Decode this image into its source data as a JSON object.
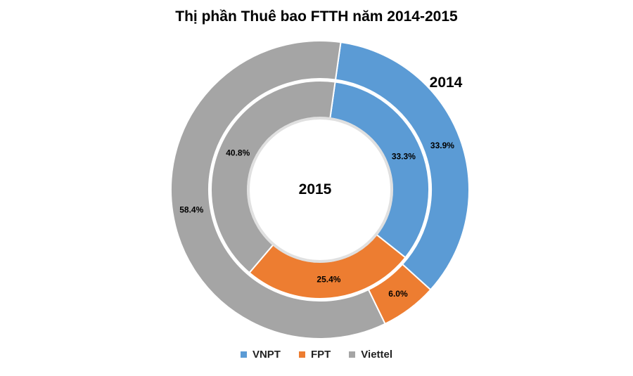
{
  "chart_data": {
    "type": "doughnut",
    "title": "Thị phần Thuê bao FTTH năm 2014-2015",
    "categories": [
      "VNPT",
      "FPT",
      "Viettel"
    ],
    "colors": [
      "#5B9BD5",
      "#ED7D31",
      "#A5A5A5"
    ],
    "series": [
      {
        "name": "2014",
        "ring": "outer",
        "values": [
          33.9,
          6.0,
          58.4
        ],
        "labels": [
          "33.9%",
          "6.0%",
          "58.4%"
        ]
      },
      {
        "name": "2015",
        "ring": "inner",
        "values": [
          33.3,
          25.4,
          40.8
        ],
        "labels": [
          "33.3%",
          "25.4%",
          "40.8%"
        ]
      }
    ],
    "legend_position": "bottom"
  }
}
